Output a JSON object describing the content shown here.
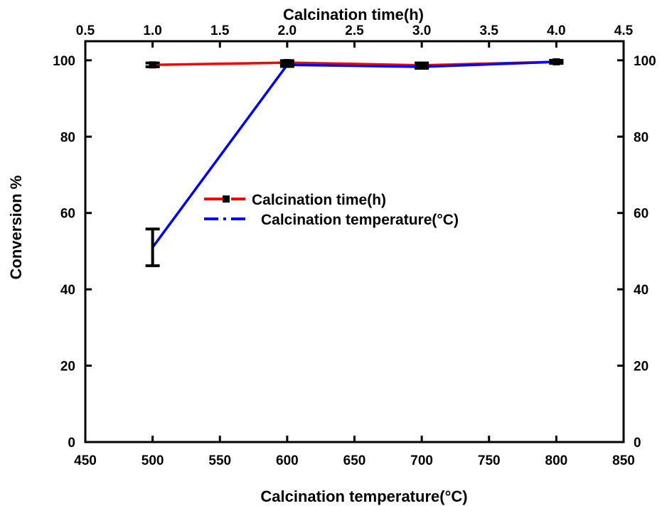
{
  "chart_data": {
    "type": "line",
    "title": "",
    "xlabel": "Calcination temperature(°C)",
    "x2label": "Calcination time(h)",
    "ylabel": "Conversion %",
    "xlim": [
      450,
      850
    ],
    "x2lim": [
      0.5,
      4.5
    ],
    "ylim": [
      0,
      105
    ],
    "x_ticks": [
      "450",
      "500",
      "550",
      "600",
      "650",
      "700",
      "750",
      "800",
      "850"
    ],
    "x2_ticks": [
      "0.5",
      "1.0",
      "1.5",
      "2.0",
      "2.5",
      "3.0",
      "3.5",
      "4.0",
      "4.5"
    ],
    "y_ticks": [
      "0",
      "20",
      "40",
      "60",
      "80",
      "100"
    ],
    "grid": false,
    "legend_position": "center-left",
    "series": [
      {
        "name": "Calcination time(h)",
        "axis": "top",
        "color": "#ff0000",
        "line_style": "dash",
        "marker": "square",
        "x": [
          1.0,
          2.0,
          3.0,
          4.0
        ],
        "y": [
          98.8,
          99.4,
          98.7,
          99.6
        ],
        "error": [
          0.5,
          0.5,
          0.6,
          0.4
        ]
      },
      {
        "name": "Calcination temperature(°C)",
        "axis": "bottom",
        "color": "#0000ff",
        "line_style": "dash-dot",
        "marker": "none",
        "x": [
          500,
          600,
          700,
          800
        ],
        "y": [
          51.0,
          98.8,
          98.3,
          99.6
        ],
        "error": [
          4.8,
          0.4,
          0.4,
          0.3
        ]
      }
    ]
  }
}
